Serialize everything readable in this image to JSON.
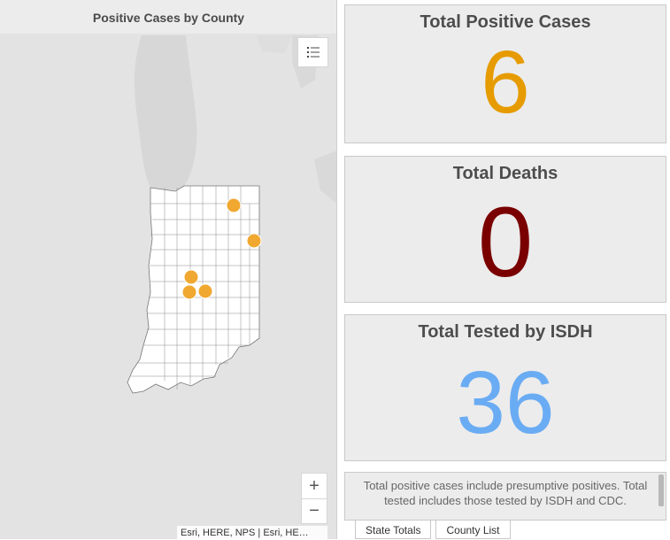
{
  "map": {
    "title": "Positive Cases by County",
    "attribution": "Esri, HERE, NPS | Esri, HE…",
    "controls": {
      "legend_icon": "legend-list-icon",
      "zoom_in": "+",
      "zoom_out": "−"
    },
    "colors": {
      "marker": "#f0a830",
      "land": "#d6d6d6",
      "water": "#dcdcdc",
      "state_fill": "#ffffff"
    }
  },
  "indicators": {
    "positive": {
      "title": "Total Positive Cases",
      "value": "6",
      "color": "#e69b00"
    },
    "deaths": {
      "title": "Total Deaths",
      "value": "0",
      "color": "#7a0000"
    },
    "tested": {
      "title": "Total Tested by ISDH",
      "value": "36",
      "color": "#6aacf3"
    }
  },
  "note": {
    "text": "Total positive cases include presumptive positives.  Total tested includes those tested by ISDH and CDC."
  },
  "tabs": [
    {
      "label": "State Totals"
    },
    {
      "label": "County List"
    }
  ]
}
